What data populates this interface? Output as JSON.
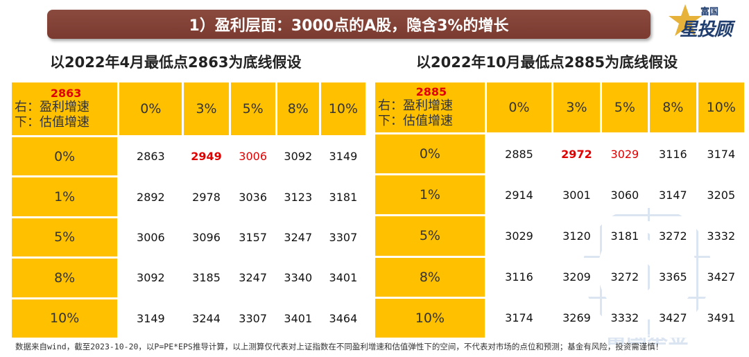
{
  "banner": {
    "title": "1）盈利层面：3000点的A股，隐含3%的增长"
  },
  "logo": {
    "small": "富国",
    "big": "星投顾"
  },
  "watermark": {
    "text": "富国基金"
  },
  "left": {
    "subtitle": "以2022年4月最低点2863为底线假设",
    "corner": {
      "base": "2863",
      "right_label": "右：盈利增速",
      "down_label": "下：估值增速"
    },
    "cols": [
      "0%",
      "3%",
      "5%",
      "8%",
      "10%"
    ],
    "rows": [
      {
        "label": "0%",
        "values": [
          "2863",
          "2949",
          "3006",
          "3092",
          "3149"
        ]
      },
      {
        "label": "1%",
        "values": [
          "2892",
          "2978",
          "3036",
          "3123",
          "3181"
        ]
      },
      {
        "label": "5%",
        "values": [
          "3006",
          "3096",
          "3157",
          "3247",
          "3307"
        ]
      },
      {
        "label": "8%",
        "values": [
          "3092",
          "3185",
          "3247",
          "3340",
          "3401"
        ]
      },
      {
        "label": "10%",
        "values": [
          "3149",
          "3244",
          "3307",
          "3401",
          "3464"
        ]
      }
    ]
  },
  "right": {
    "subtitle": "以2022年10月最低点2885为底线假设",
    "corner": {
      "base": "2885",
      "right_label": "右：盈利增速",
      "down_label": "下：估值增速"
    },
    "cols": [
      "0%",
      "3%",
      "5%",
      "8%",
      "10%"
    ],
    "rows": [
      {
        "label": "0%",
        "values": [
          "2885",
          "2972",
          "3029",
          "3116",
          "3174"
        ]
      },
      {
        "label": "1%",
        "values": [
          "2914",
          "3001",
          "3060",
          "3147",
          "3205"
        ]
      },
      {
        "label": "5%",
        "values": [
          "3029",
          "3120",
          "3181",
          "3272",
          "3332"
        ]
      },
      {
        "label": "8%",
        "values": [
          "3116",
          "3209",
          "3272",
          "3365",
          "3427"
        ]
      },
      {
        "label": "10%",
        "values": [
          "3174",
          "3269",
          "3332",
          "3427",
          "3491"
        ]
      }
    ]
  },
  "footnote": "数据来自wind，截至2023-10-20，以P=PE*EPS推导计算，以上测算仅代表对上证指数在不同盈利增速和估值弹性下的空间，不代表对市场的点位和预测；基金有风险，投资需谨慎！",
  "colors": {
    "banner": "#7b3a2f",
    "gold": "#ffc000",
    "highlight_red": "#e00000"
  }
}
